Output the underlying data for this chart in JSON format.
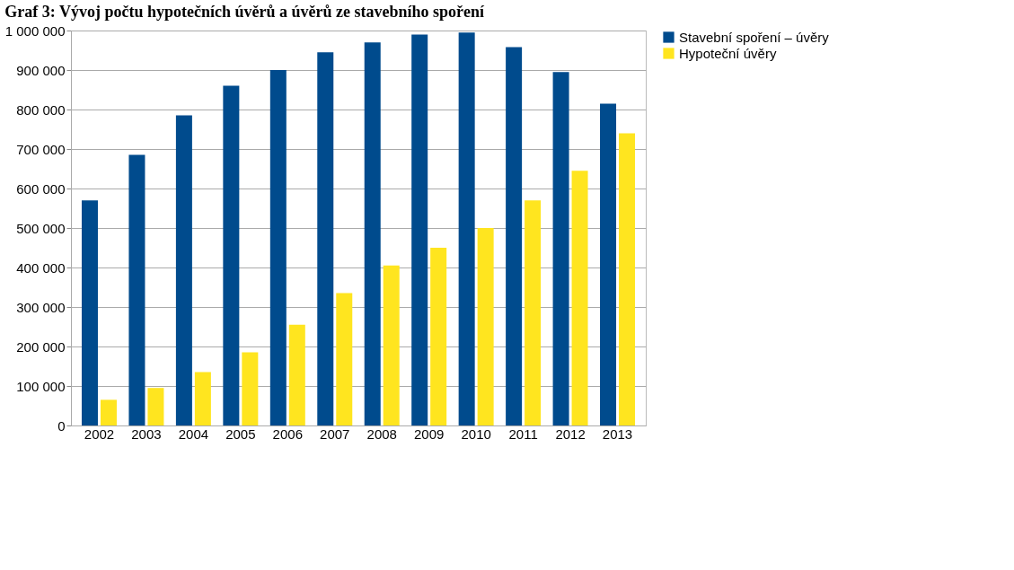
{
  "chart_data": {
    "type": "bar",
    "title": "Graf 3: Vývoj počtu hypotečních úvěrů a úvěrů ze stavebního spoření",
    "categories": [
      "2002",
      "2003",
      "2004",
      "2005",
      "2006",
      "2007",
      "2008",
      "2009",
      "2010",
      "2011",
      "2012",
      "2013"
    ],
    "series": [
      {
        "name": "Stavební spoření – úvěry",
        "color": "#004b8d",
        "values": [
          570000,
          685000,
          785000,
          860000,
          900000,
          945000,
          970000,
          990000,
          995000,
          958000,
          895000,
          815000
        ]
      },
      {
        "name": "Hypoteční úvěry",
        "color": "#ffe51f",
        "values": [
          65000,
          95000,
          135000,
          185000,
          255000,
          335000,
          405000,
          450000,
          500000,
          570000,
          645000,
          740000
        ]
      }
    ],
    "ylim": [
      0,
      1000000
    ],
    "yticks": [
      0,
      100000,
      200000,
      300000,
      400000,
      500000,
      600000,
      700000,
      800000,
      900000,
      1000000
    ],
    "grid": "y",
    "legend": "right"
  }
}
